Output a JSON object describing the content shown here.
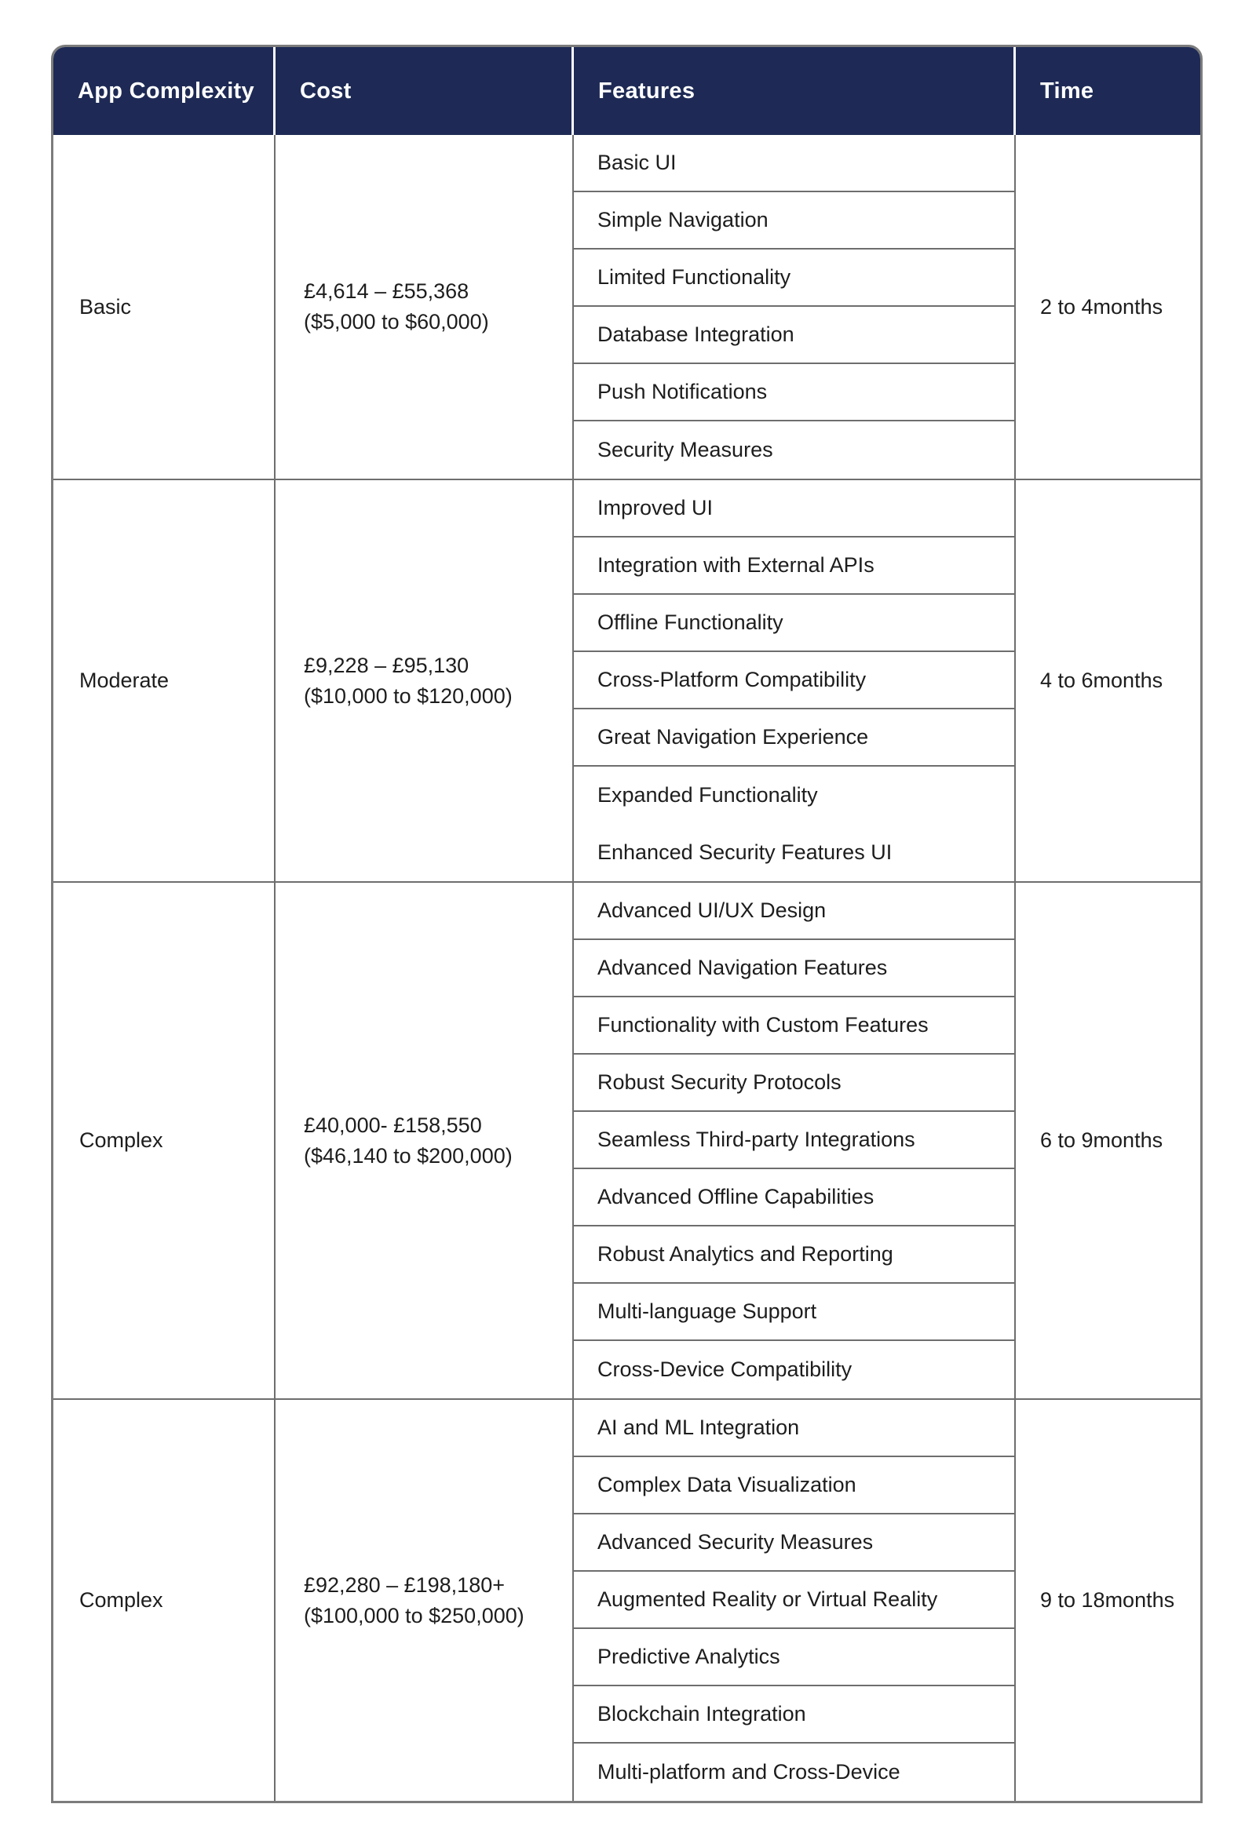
{
  "table": {
    "columns": [
      "App Complexity",
      "Cost",
      "Features",
      "Time"
    ],
    "rows": [
      {
        "complexity": "Basic",
        "cost_gbp": "£4,614 – £55,368",
        "cost_usd": "($5,000 to $60,000)",
        "features": [
          "Basic UI",
          "Simple Navigation",
          "Limited Functionality",
          "Database Integration",
          "Push Notifications",
          "Security Measures"
        ],
        "time": "2 to 4months"
      },
      {
        "complexity": "Moderate",
        "cost_gbp": "£9,228 – £95,130",
        "cost_usd": "($10,000 to $120,000)",
        "features": [
          "Improved UI",
          "Integration with External APIs",
          "Offline Functionality",
          "Cross-Platform Compatibility",
          "Great Navigation Experience",
          "Expanded Functionality",
          "Enhanced Security Features UI"
        ],
        "merged_divider_after_index": 5,
        "time": "4 to 6months"
      },
      {
        "complexity": "Complex",
        "cost_gbp": "£40,000- £158,550",
        "cost_usd": "($46,140 to $200,000)",
        "features": [
          "Advanced UI/UX Design",
          "Advanced Navigation Features",
          "Functionality with Custom Features",
          "Robust Security Protocols",
          "Seamless Third-party Integrations",
          "Advanced Offline Capabilities",
          "Robust Analytics and Reporting",
          "Multi-language Support",
          "Cross-Device Compatibility"
        ],
        "time": "6 to 9months"
      },
      {
        "complexity": "Complex",
        "cost_gbp": "£92,280 – £198,180+",
        "cost_usd": "($100,000 to $250,000)",
        "features": [
          "AI and ML Integration",
          "Complex Data Visualization",
          "Advanced Security Measures",
          "Augmented Reality or Virtual Reality",
          "Predictive Analytics",
          "Blockchain Integration",
          "Multi-platform and Cross-Device"
        ],
        "time": "9 to 18months"
      }
    ]
  },
  "colors": {
    "header_bg": "#1e2a55",
    "header_text": "#ffffff",
    "border_outer": "#7c7c7c",
    "border_inner": "#6e6e6e",
    "body_text": "#1d1d1d",
    "page_bg": "#ffffff"
  }
}
